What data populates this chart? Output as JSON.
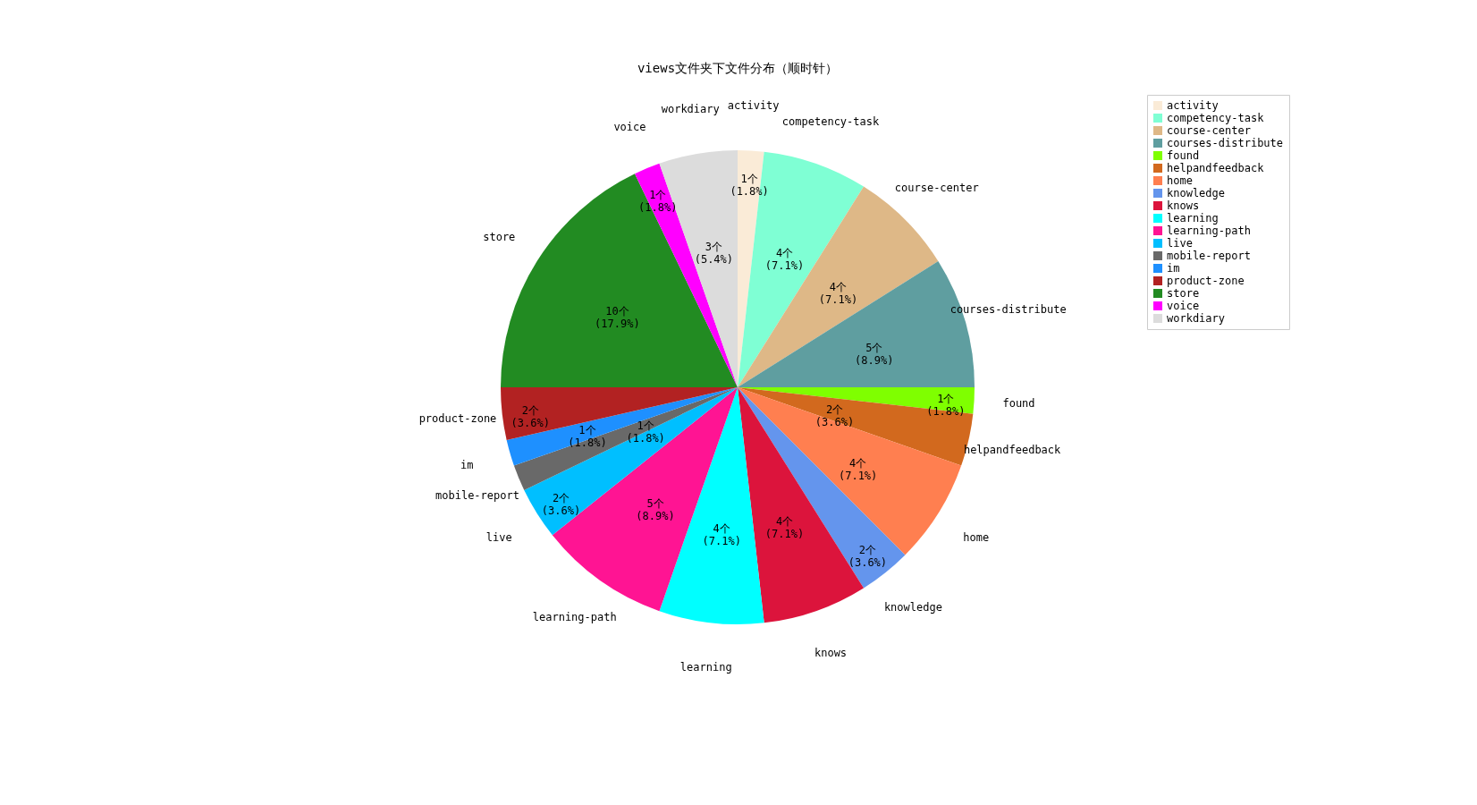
{
  "chart_data": {
    "type": "pie",
    "title": "views文件夹下文件分布（顺时针）",
    "categories": [
      "activity",
      "competency-task",
      "course-center",
      "courses-distribute",
      "found",
      "helpandfeedback",
      "home",
      "knowledge",
      "knows",
      "learning",
      "learning-path",
      "live",
      "mobile-report",
      "im",
      "product-zone",
      "store",
      "voice",
      "workdiary"
    ],
    "values": [
      1,
      4,
      4,
      5,
      1,
      2,
      4,
      2,
      4,
      4,
      5,
      2,
      1,
      1,
      2,
      10,
      1,
      3
    ],
    "colors": [
      "#faebd7",
      "#7fffd4",
      "#deb887",
      "#5f9ea0",
      "#7fff00",
      "#d2691e",
      "#ff7f50",
      "#6495ed",
      "#dc143c",
      "#00ffff",
      "#ff1493",
      "#00bfff",
      "#696969",
      "#1e90ff",
      "#b22222",
      "#228b22",
      "#ff00ff",
      "#dcdcdc"
    ],
    "value_labels": [
      "1个\n(1.8%)",
      "4个\n(7.1%)",
      "4个\n(7.1%)",
      "5个\n(8.9%)",
      "1个\n(1.8%)",
      "2个\n(3.6%)",
      "4个\n(7.1%)",
      "2个\n(3.6%)",
      "4个\n(7.1%)",
      "4个\n(7.1%)",
      "5个\n(8.9%)",
      "2个\n(3.6%)",
      "1个\n(1.8%)",
      "1个\n(1.8%)",
      "2个\n(3.6%)",
      "10个\n(17.9%)",
      "1个\n(1.8%)",
      "3个\n(5.4%)"
    ],
    "legend": "top right"
  }
}
